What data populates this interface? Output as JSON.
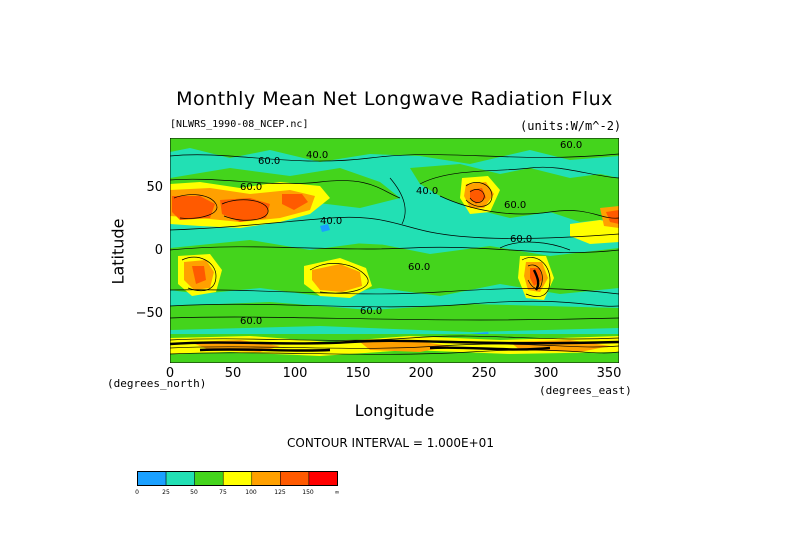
{
  "title": "Monthly Mean Net Longwave Radiation Flux",
  "file": "[NLWRS_1990-08_NCEP.nc]",
  "units": "(units:W/m^-2)",
  "y_axis": {
    "label": "Latitude",
    "unit": "(degrees_north)",
    "ticks": [
      "50",
      "0",
      "−50"
    ]
  },
  "x_axis": {
    "label": "Longitude",
    "unit": "(degrees_east)",
    "ticks": [
      "0",
      "50",
      "100",
      "150",
      "200",
      "250",
      "300",
      "350"
    ]
  },
  "contour_interval": "CONTOUR INTERVAL = 1.000E+01",
  "contour_labels": [
    "60.0",
    "40.0",
    "40.0",
    "60.0",
    "60.0",
    "40.0",
    "60.0",
    "60.0",
    "60.0",
    "60.0",
    "60.0"
  ],
  "colorbar": {
    "colors": [
      "#1aa0ff",
      "#22e0b4",
      "#44d41c",
      "#ffff00",
      "#ffa000",
      "#ff5a00",
      "#ff0000"
    ],
    "ticks": [
      "0",
      "25",
      "50",
      "75",
      "100",
      "125",
      "150",
      "∞"
    ]
  },
  "map_colors": {
    "ocean_base": "#22e0b4",
    "land_green": "#44d41c",
    "yellow": "#ffff00",
    "orange": "#ffa000",
    "red_orange": "#ff5a00",
    "blue": "#1aa0ff"
  }
}
